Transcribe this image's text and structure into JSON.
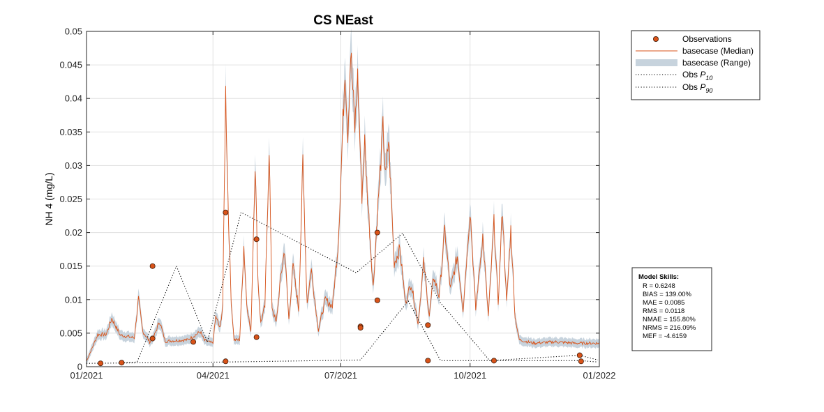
{
  "chart_data": {
    "type": "line",
    "title": "CS NEast",
    "xlabel": "",
    "ylabel": "NH 4 (mg/L)",
    "x_range": [
      "2021-01-01",
      "2022-01-01"
    ],
    "ylim": [
      0,
      0.05
    ],
    "x_ticks": [
      "01/2021",
      "04/2021",
      "07/2021",
      "10/2021",
      "01/2022"
    ],
    "y_ticks": [
      "0",
      "0.005",
      "0.01",
      "0.015",
      "0.02",
      "0.025",
      "0.03",
      "0.035",
      "0.04",
      "0.045",
      "0.05"
    ],
    "grid": true,
    "legend_placement": "outside right, top",
    "legend": [
      {
        "label": "Observations",
        "kind": "marker"
      },
      {
        "label": "basecase (Median)",
        "kind": "line"
      },
      {
        "label": "basecase (Range)",
        "kind": "band"
      },
      {
        "label": "Obs P10",
        "kind": "dotted"
      },
      {
        "label": "Obs P90",
        "kind": "dotted"
      }
    ],
    "colors": {
      "observations": "#d95319",
      "median": "#d95319",
      "range": "#c7d3dd",
      "percentile": "#000000"
    },
    "observations": [
      {
        "x": "2021-01-11",
        "y": 0.0005
      },
      {
        "x": "2021-01-26",
        "y": 0.0006
      },
      {
        "x": "2021-02-17",
        "y": 0.015
      },
      {
        "x": "2021-02-17",
        "y": 0.0042
      },
      {
        "x": "2021-03-18",
        "y": 0.0037
      },
      {
        "x": "2021-04-10",
        "y": 0.023
      },
      {
        "x": "2021-04-10",
        "y": 0.0008
      },
      {
        "x": "2021-05-02",
        "y": 0.019
      },
      {
        "x": "2021-05-02",
        "y": 0.0044
      },
      {
        "x": "2021-07-15",
        "y": 0.006
      },
      {
        "x": "2021-07-15",
        "y": 0.0058
      },
      {
        "x": "2021-07-27",
        "y": 0.02
      },
      {
        "x": "2021-07-27",
        "y": 0.0099
      },
      {
        "x": "2021-09-01",
        "y": 0.0062
      },
      {
        "x": "2021-09-01",
        "y": 0.0009
      },
      {
        "x": "2021-10-18",
        "y": 0.0009
      },
      {
        "x": "2021-12-18",
        "y": 0.0017
      },
      {
        "x": "2021-12-19",
        "y": 0.0008
      }
    ],
    "obs_p10": [
      {
        "x": "2021-01-01",
        "y": 0.0005
      },
      {
        "x": "2021-04-10",
        "y": 0.0007
      },
      {
        "x": "2021-07-15",
        "y": 0.001
      },
      {
        "x": "2021-08-18",
        "y": 0.0098
      },
      {
        "x": "2021-09-10",
        "y": 0.0009
      },
      {
        "x": "2021-10-11",
        "y": 0.0009
      },
      {
        "x": "2021-10-18",
        "y": 0.0009
      },
      {
        "x": "2021-12-19",
        "y": 0.0009
      },
      {
        "x": "2021-12-31",
        "y": 0.0007
      }
    ],
    "obs_p90": [
      {
        "x": "2021-01-26",
        "y": 0.0006
      },
      {
        "x": "2021-02-06",
        "y": 0.0007
      },
      {
        "x": "2021-03-06",
        "y": 0.015
      },
      {
        "x": "2021-03-28",
        "y": 0.0037
      },
      {
        "x": "2021-04-21",
        "y": 0.023
      },
      {
        "x": "2021-07-12",
        "y": 0.014
      },
      {
        "x": "2021-08-14",
        "y": 0.0199
      },
      {
        "x": "2021-09-10",
        "y": 0.0095
      },
      {
        "x": "2021-10-15",
        "y": 0.0009
      },
      {
        "x": "2021-12-18",
        "y": 0.0017
      },
      {
        "x": "2021-12-31",
        "y": 0.001
      }
    ],
    "median_keypoints": [
      [
        "2021-01-01",
        0.0008
      ],
      [
        "2021-01-09",
        0.0048
      ],
      [
        "2021-01-15",
        0.0048
      ],
      [
        "2021-01-19",
        0.0072
      ],
      [
        "2021-01-25",
        0.0047
      ],
      [
        "2021-02-04",
        0.0043
      ],
      [
        "2021-02-07",
        0.0101
      ],
      [
        "2021-02-10",
        0.0053
      ],
      [
        "2021-02-15",
        0.0037
      ],
      [
        "2021-02-18",
        0.0045
      ],
      [
        "2021-02-22",
        0.0068
      ],
      [
        "2021-02-26",
        0.0038
      ],
      [
        "2021-03-14",
        0.004
      ],
      [
        "2021-03-23",
        0.0052
      ],
      [
        "2021-03-26",
        0.0039
      ],
      [
        "2021-04-01",
        0.0035
      ],
      [
        "2021-04-03",
        0.0075
      ],
      [
        "2021-04-06",
        0.0057
      ],
      [
        "2021-04-08",
        0.0092
      ],
      [
        "2021-04-10",
        0.041
      ],
      [
        "2021-04-12",
        0.0225
      ],
      [
        "2021-04-14",
        0.0098
      ],
      [
        "2021-04-16",
        0.004
      ],
      [
        "2021-04-20",
        0.004
      ],
      [
        "2021-04-23",
        0.018
      ],
      [
        "2021-04-25",
        0.0095
      ],
      [
        "2021-04-28",
        0.005
      ],
      [
        "2021-05-01",
        0.0305
      ],
      [
        "2021-05-03",
        0.013
      ],
      [
        "2021-05-05",
        0.0065
      ],
      [
        "2021-05-08",
        0.009
      ],
      [
        "2021-05-11",
        0.033
      ],
      [
        "2021-05-13",
        0.009
      ],
      [
        "2021-05-16",
        0.0065
      ],
      [
        "2021-05-19",
        0.013
      ],
      [
        "2021-05-22",
        0.0175
      ],
      [
        "2021-05-25",
        0.007
      ],
      [
        "2021-05-28",
        0.015
      ],
      [
        "2021-06-01",
        0.0085
      ],
      [
        "2021-06-04",
        0.0305
      ],
      [
        "2021-06-07",
        0.0095
      ],
      [
        "2021-06-10",
        0.0145
      ],
      [
        "2021-06-15",
        0.0055
      ],
      [
        "2021-06-20",
        0.01
      ],
      [
        "2021-06-25",
        0.009
      ],
      [
        "2021-06-29",
        0.018
      ],
      [
        "2021-07-01",
        0.028
      ],
      [
        "2021-07-04",
        0.045
      ],
      [
        "2021-07-06",
        0.035
      ],
      [
        "2021-07-08",
        0.047
      ],
      [
        "2021-07-11",
        0.0355
      ],
      [
        "2021-07-13",
        0.043
      ],
      [
        "2021-07-16",
        0.0255
      ],
      [
        "2021-07-18",
        0.0335
      ],
      [
        "2021-07-20",
        0.0255
      ],
      [
        "2021-07-24",
        0.0118
      ],
      [
        "2021-07-28",
        0.026
      ],
      [
        "2021-07-31",
        0.0355
      ],
      [
        "2021-08-02",
        0.028
      ],
      [
        "2021-08-04",
        0.034
      ],
      [
        "2021-08-08",
        0.0155
      ],
      [
        "2021-08-12",
        0.0175
      ],
      [
        "2021-08-16",
        0.0095
      ],
      [
        "2021-08-20",
        0.0125
      ],
      [
        "2021-08-25",
        0.0065
      ],
      [
        "2021-08-29",
        0.0155
      ],
      [
        "2021-09-02",
        0.0075
      ],
      [
        "2021-09-05",
        0.0135
      ],
      [
        "2021-09-09",
        0.0105
      ],
      [
        "2021-09-13",
        0.0205
      ],
      [
        "2021-09-17",
        0.0115
      ],
      [
        "2021-09-22",
        0.0165
      ],
      [
        "2021-09-26",
        0.0085
      ],
      [
        "2021-10-01",
        0.0235
      ],
      [
        "2021-10-05",
        0.0085
      ],
      [
        "2021-10-10",
        0.0195
      ],
      [
        "2021-10-14",
        0.0075
      ],
      [
        "2021-10-18",
        0.0215
      ],
      [
        "2021-10-21",
        0.0095
      ],
      [
        "2021-10-24",
        0.0235
      ],
      [
        "2021-10-27",
        0.0095
      ],
      [
        "2021-10-30",
        0.0205
      ],
      [
        "2021-11-02",
        0.0075
      ],
      [
        "2021-11-05",
        0.004
      ],
      [
        "2021-11-15",
        0.0035
      ],
      [
        "2021-12-01",
        0.0037
      ],
      [
        "2021-12-15",
        0.0035
      ],
      [
        "2021-12-31",
        0.0035
      ]
    ],
    "model_skills": {
      "heading": "Model Skills:",
      "lines": [
        "R    = 0.6248",
        "BIAS = 139.00%",
        "MAE  = 0.0085",
        "RMS  = 0.0118",
        "NMAE = 155.80%",
        "NRMS = 216.09%",
        "MEF  = -4.6159"
      ]
    }
  }
}
